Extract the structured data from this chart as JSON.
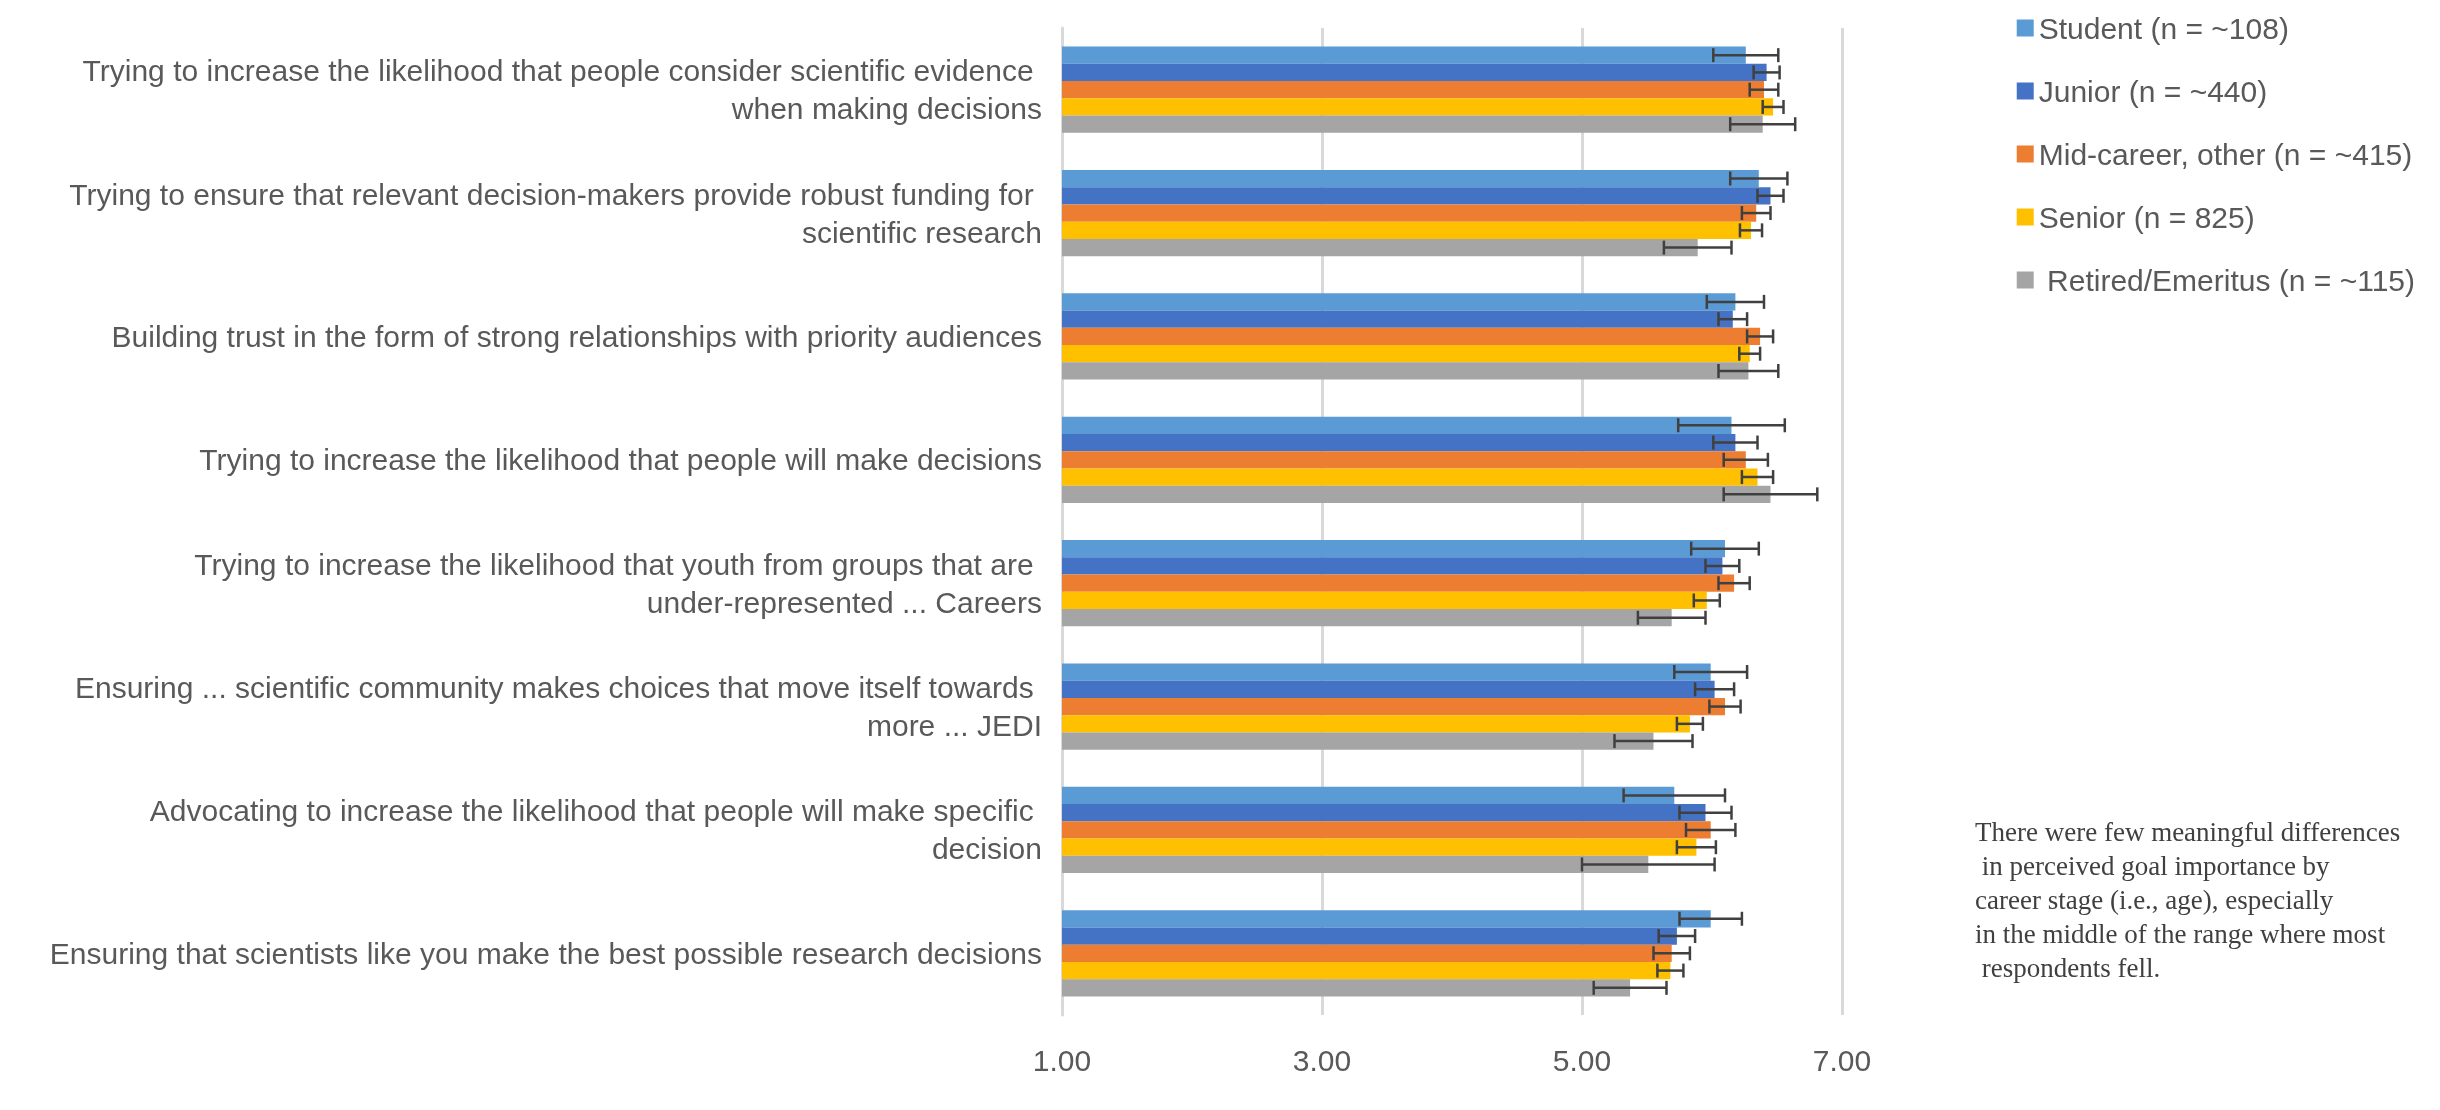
{
  "chart_data": {
    "type": "bar",
    "orientation": "horizontal",
    "categories": [
      "Trying to increase the likelihood that people consider scientific evidence when making decisions",
      "Trying to ensure that relevant decision-makers provide robust funding for scientific research",
      "Building trust in the form of strong relationships with priority audiences",
      "Trying to increase the likelihood that people will make decisions",
      "Trying to increase the likelihood that youth from groups that are under-represented ... Careers",
      "Ensuring ... scientific community makes choices that move itself towards more ... JEDI",
      "Advocating to increase the likelihood that people will make specific decision",
      "Ensuring that scientists like you make the best possible research decisions"
    ],
    "series": [
      {
        "name": "Student (n = ~108)",
        "color": "#5b9bd5",
        "values": [
          6.26,
          6.36,
          6.18,
          6.15,
          6.1,
          5.99,
          5.71,
          5.99
        ],
        "errors": [
          0.25,
          0.22,
          0.22,
          0.41,
          0.26,
          0.28,
          0.39,
          0.24
        ]
      },
      {
        "name": "Junior (n = ~440)",
        "color": "#4472c4",
        "values": [
          6.42,
          6.45,
          6.16,
          6.18,
          6.08,
          6.02,
          5.95,
          5.73
        ],
        "errors": [
          0.1,
          0.1,
          0.11,
          0.17,
          0.13,
          0.15,
          0.2,
          0.14
        ]
      },
      {
        "name": "Mid-career, other (n = ~415)",
        "color": "#ed7d31",
        "values": [
          6.4,
          6.34,
          6.37,
          6.26,
          6.17,
          6.1,
          5.99,
          5.69
        ],
        "errors": [
          0.11,
          0.11,
          0.1,
          0.17,
          0.12,
          0.12,
          0.19,
          0.14
        ]
      },
      {
        "name": "Senior (n = 825)",
        "color": "#ffc000",
        "values": [
          6.47,
          6.3,
          6.29,
          6.35,
          5.96,
          5.83,
          5.88,
          5.68
        ],
        "errors": [
          0.08,
          0.085,
          0.08,
          0.12,
          0.1,
          0.1,
          0.15,
          0.1
        ]
      },
      {
        "name": " Retired/Emeritus (n = ~115)",
        "color": "#a5a5a5",
        "values": [
          6.39,
          5.89,
          6.28,
          6.45,
          5.69,
          5.55,
          5.51,
          5.37
        ],
        "errors": [
          0.25,
          0.26,
          0.23,
          0.36,
          0.26,
          0.3,
          0.51,
          0.28
        ]
      }
    ],
    "xlim": [
      1,
      7
    ],
    "xticks": [
      {
        "value": 1,
        "label": "1.00"
      },
      {
        "value": 3,
        "label": "3.00"
      },
      {
        "value": 5,
        "label": "5.00"
      },
      {
        "value": 7,
        "label": "7.00"
      }
    ],
    "grid": "x",
    "legend": "right",
    "annotations": [
      "There were few meaningful differences in perceived goal importance by career stage (i.e., age), especially in the middle of the range where most respondents fell."
    ]
  }
}
